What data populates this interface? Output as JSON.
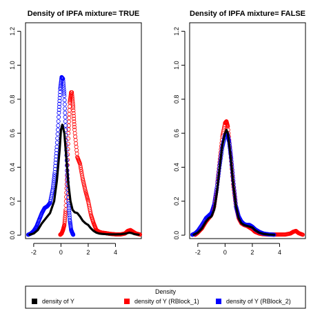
{
  "chart_data": [
    {
      "type": "line",
      "title": "Density of IPFA mixture= TRUE",
      "xlabel": "",
      "ylabel": "",
      "xlim": [
        -2.6,
        5.9
      ],
      "ylim": [
        -0.02,
        1.25
      ],
      "xticks": [
        -2,
        0,
        2,
        4
      ],
      "yticks": [
        0.0,
        0.2,
        0.4,
        0.6,
        0.8,
        1.0,
        1.2
      ],
      "xtick_labels": [
        "-2",
        "0",
        "2",
        "4"
      ],
      "ytick_labels": [
        "0.0",
        "0.2",
        "0.4",
        "0.6",
        "0.8",
        "1.0",
        "1.2"
      ],
      "series": [
        {
          "name": "density of Y",
          "color": "#000000",
          "style": "line",
          "x": [
            -2.3,
            -2.0,
            -1.7,
            -1.4,
            -1.1,
            -0.8,
            -0.5,
            -0.3,
            -0.1,
            0.0,
            0.1,
            0.25,
            0.4,
            0.55,
            0.7,
            0.85,
            1.0,
            1.2,
            1.4,
            1.6,
            1.8,
            2.0,
            2.2,
            2.4,
            2.6,
            2.8,
            3.0,
            3.3,
            3.6,
            4.0,
            4.4,
            4.8,
            5.0,
            5.2,
            5.4,
            5.7
          ],
          "y": [
            0.003,
            0.01,
            0.03,
            0.07,
            0.1,
            0.13,
            0.2,
            0.32,
            0.5,
            0.62,
            0.65,
            0.6,
            0.45,
            0.3,
            0.2,
            0.15,
            0.135,
            0.13,
            0.11,
            0.085,
            0.07,
            0.06,
            0.04,
            0.025,
            0.015,
            0.01,
            0.008,
            0.006,
            0.005,
            0.005,
            0.006,
            0.01,
            0.015,
            0.012,
            0.006,
            0.003
          ]
        },
        {
          "name": "density of Y (RBlock_1)",
          "color": "#ff0000",
          "style": "points",
          "x": [
            -0.05,
            0.05,
            0.15,
            0.25,
            0.35,
            0.45,
            0.55,
            0.65,
            0.75,
            0.8,
            0.9,
            1.0,
            1.2,
            1.4,
            1.6,
            1.8,
            2.0,
            2.2,
            2.4,
            2.6,
            2.8,
            3.0,
            3.3,
            3.6,
            4.0,
            4.4,
            4.7,
            4.9,
            5.1,
            5.3,
            5.5,
            5.8
          ],
          "y": [
            0.003,
            0.01,
            0.03,
            0.06,
            0.15,
            0.35,
            0.6,
            0.78,
            0.84,
            0.84,
            0.75,
            0.62,
            0.46,
            0.42,
            0.33,
            0.26,
            0.2,
            0.12,
            0.07,
            0.03,
            0.02,
            0.015,
            0.012,
            0.008,
            0.005,
            0.005,
            0.01,
            0.025,
            0.03,
            0.02,
            0.01,
            0.004
          ]
        },
        {
          "name": "density of Y (RBlock_2)",
          "color": "#0000ff",
          "style": "points",
          "x": [
            -2.4,
            -2.2,
            -2.0,
            -1.8,
            -1.6,
            -1.4,
            -1.2,
            -1.0,
            -0.8,
            -0.6,
            -0.45,
            -0.3,
            -0.15,
            -0.05,
            0.05,
            0.15,
            0.25,
            0.35,
            0.45,
            0.55,
            0.65,
            0.75,
            0.85,
            0.9
          ],
          "y": [
            0.003,
            0.01,
            0.025,
            0.05,
            0.09,
            0.13,
            0.16,
            0.17,
            0.19,
            0.27,
            0.37,
            0.52,
            0.72,
            0.86,
            0.93,
            0.92,
            0.82,
            0.62,
            0.38,
            0.2,
            0.09,
            0.03,
            0.01,
            0.003
          ]
        }
      ]
    },
    {
      "type": "line",
      "title": "Density of IPFA mixture= FALSE",
      "xlabel": "",
      "ylabel": "",
      "xlim": [
        -2.6,
        5.9
      ],
      "ylim": [
        -0.02,
        1.25
      ],
      "xticks": [
        -2,
        0,
        2,
        4
      ],
      "yticks": [
        0.0,
        0.2,
        0.4,
        0.6,
        0.8,
        1.0,
        1.2
      ],
      "xtick_labels": [
        "-2",
        "0",
        "2",
        "4"
      ],
      "ytick_labels": [
        "0.0",
        "0.2",
        "0.4",
        "0.6",
        "0.8",
        "1.0",
        "1.2"
      ],
      "series": [
        {
          "name": "density of Y",
          "color": "#000000",
          "style": "line",
          "x": [
            -2.3,
            -2.0,
            -1.7,
            -1.4,
            -1.2,
            -1.0,
            -0.8,
            -0.6,
            -0.4,
            -0.2,
            0.0,
            0.1,
            0.2,
            0.4,
            0.6,
            0.8,
            1.0,
            1.2,
            1.4,
            1.6,
            1.8,
            2.0,
            2.2,
            2.5,
            2.8,
            3.2,
            3.6
          ],
          "y": [
            0.003,
            0.015,
            0.04,
            0.08,
            0.1,
            0.11,
            0.15,
            0.25,
            0.4,
            0.53,
            0.6,
            0.62,
            0.6,
            0.47,
            0.3,
            0.17,
            0.1,
            0.07,
            0.06,
            0.055,
            0.05,
            0.045,
            0.03,
            0.015,
            0.008,
            0.004,
            0.002
          ]
        },
        {
          "name": "density of Y (RBlock_1)",
          "color": "#ff0000",
          "style": "points",
          "x": [
            -2.2,
            -2.0,
            -1.7,
            -1.4,
            -1.2,
            -1.0,
            -0.8,
            -0.6,
            -0.4,
            -0.2,
            0.0,
            0.1,
            0.2,
            0.4,
            0.6,
            0.8,
            1.0,
            1.2,
            1.4,
            1.6,
            1.8,
            2.0,
            2.2,
            2.5,
            2.8,
            3.2,
            3.6,
            4.0,
            4.4,
            4.8,
            5.0,
            5.2,
            5.4,
            5.7
          ],
          "y": [
            0.003,
            0.015,
            0.04,
            0.08,
            0.1,
            0.12,
            0.17,
            0.28,
            0.43,
            0.58,
            0.66,
            0.67,
            0.64,
            0.48,
            0.3,
            0.17,
            0.1,
            0.07,
            0.06,
            0.055,
            0.045,
            0.035,
            0.02,
            0.01,
            0.006,
            0.004,
            0.004,
            0.004,
            0.004,
            0.01,
            0.02,
            0.025,
            0.012,
            0.003
          ]
        },
        {
          "name": "density of Y (RBlock_2)",
          "color": "#0000ff",
          "style": "points",
          "x": [
            -2.4,
            -2.2,
            -2.0,
            -1.7,
            -1.4,
            -1.2,
            -1.0,
            -0.8,
            -0.6,
            -0.4,
            -0.2,
            0.0,
            0.15,
            0.3,
            0.45,
            0.6,
            0.8,
            1.0,
            1.2,
            1.4,
            1.6,
            1.8,
            2.0,
            2.2,
            2.5,
            2.8,
            3.2,
            3.6
          ],
          "y": [
            0.003,
            0.01,
            0.025,
            0.06,
            0.1,
            0.115,
            0.13,
            0.18,
            0.28,
            0.41,
            0.52,
            0.59,
            0.6,
            0.55,
            0.45,
            0.32,
            0.17,
            0.11,
            0.08,
            0.065,
            0.06,
            0.06,
            0.05,
            0.035,
            0.02,
            0.01,
            0.005,
            0.003
          ]
        }
      ]
    }
  ],
  "legend": {
    "title": "Density",
    "items": [
      {
        "label": "density of Y",
        "color": "#000000"
      },
      {
        "label": "density of Y (RBlock_1)",
        "color": "#ff0000"
      },
      {
        "label": "density of Y (RBlock_2)",
        "color": "#0000ff"
      }
    ]
  }
}
